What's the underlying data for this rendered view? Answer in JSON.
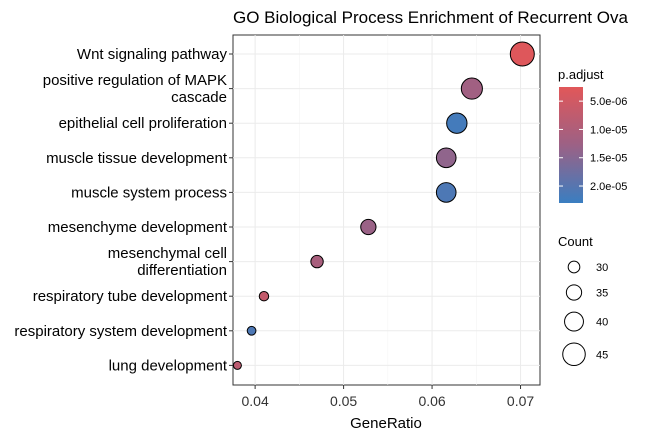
{
  "chart_data": {
    "type": "scatter",
    "title": "GO Biological Process Enrichment of Recurrent Ova",
    "xlabel": "GeneRatio",
    "ylabel": "",
    "xlim": [
      0.0375,
      0.0722
    ],
    "xticks": [
      "0.04",
      "0.05",
      "0.06",
      "0.07"
    ],
    "xtick_values": [
      0.04,
      0.05,
      0.06,
      0.07
    ],
    "grid": true,
    "legend_position": "right",
    "categories": [
      "Wnt signaling pathway",
      "positive regulation of MAPK\ncascade",
      "epithelial cell proliferation",
      "muscle tissue development",
      "muscle system process",
      "mesenchyme development",
      "mesenchymal cell\ndifferentiation",
      "respiratory tube development",
      "respiratory system development",
      "lung development"
    ],
    "points": [
      {
        "term": "Wnt signaling pathway",
        "gene_ratio": 0.0702,
        "count": 47,
        "p_adjust": 3e-06
      },
      {
        "term": "positive regulation of MAPK cascade",
        "gene_ratio": 0.0645,
        "count": 43,
        "p_adjust": 1.2e-05
      },
      {
        "term": "epithelial cell proliferation",
        "gene_ratio": 0.0628,
        "count": 42,
        "p_adjust": 2.2e-05
      },
      {
        "term": "muscle tissue development",
        "gene_ratio": 0.0616,
        "count": 41,
        "p_adjust": 1.4e-05
      },
      {
        "term": "muscle system process",
        "gene_ratio": 0.0616,
        "count": 41,
        "p_adjust": 2.1e-05
      },
      {
        "term": "mesenchyme development",
        "gene_ratio": 0.0528,
        "count": 35,
        "p_adjust": 1.3e-05
      },
      {
        "term": "mesenchymal cell differentiation",
        "gene_ratio": 0.047,
        "count": 31,
        "p_adjust": 1.1e-05
      },
      {
        "term": "respiratory tube development",
        "gene_ratio": 0.041,
        "count": 27,
        "p_adjust": 7e-06
      },
      {
        "term": "respiratory system development",
        "gene_ratio": 0.0396,
        "count": 26,
        "p_adjust": 2.1e-05
      },
      {
        "term": "lung development",
        "gene_ratio": 0.038,
        "count": 25,
        "p_adjust": 8e-06
      }
    ],
    "color_legend": {
      "title": "p.adjust",
      "labels": [
        "5.0e-06",
        "1.0e-05",
        "1.5e-05",
        "2.0e-05"
      ],
      "values": [
        5e-06,
        1e-05,
        1.5e-05,
        2e-05
      ],
      "range": [
        2.5e-06,
        2.3e-05
      ],
      "low_color": "#E15759",
      "high_color": "#3A7EC1"
    },
    "size_legend": {
      "title": "Count",
      "labels": [
        "30",
        "35",
        "40",
        "45"
      ],
      "values": [
        30,
        35,
        40,
        45
      ],
      "range": [
        25,
        47
      ]
    }
  }
}
